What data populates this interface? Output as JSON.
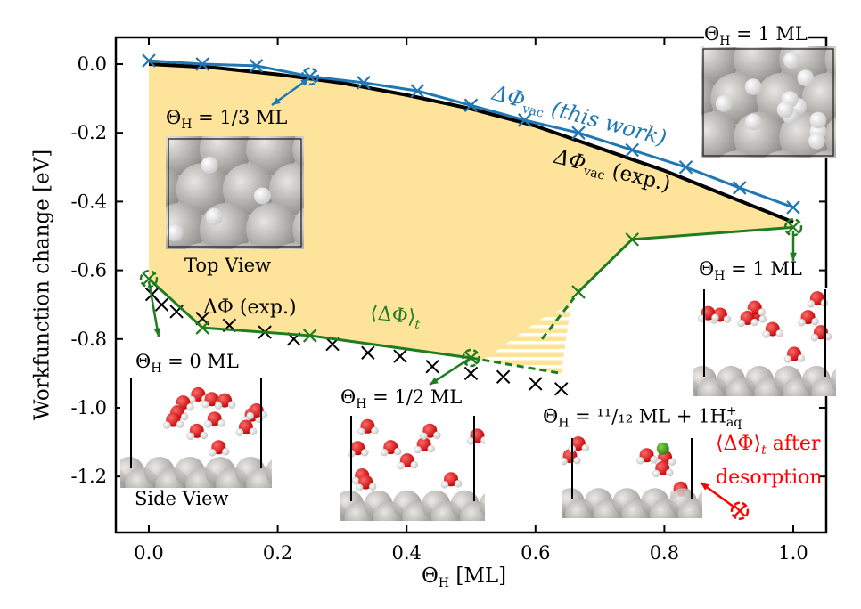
{
  "chart_data": {
    "type": "line",
    "xlabel": {
      "symbol": "Θ",
      "sub": "H",
      "rest": " [ML]"
    },
    "ylabel": "Workfunction change [eV]",
    "xlim": [
      -0.05,
      1.05
    ],
    "ylim": [
      -1.37,
      0.08
    ],
    "xticks": [
      0.0,
      0.2,
      0.4,
      0.6,
      0.8,
      1.0
    ],
    "xtick_labels": [
      "0.0",
      "0.2",
      "0.4",
      "0.6",
      "0.8",
      "1.0"
    ],
    "yticks": [
      0.0,
      -0.2,
      -0.4,
      -0.6,
      -0.8,
      -1.0,
      -1.2
    ],
    "ytick_labels": [
      "0.0",
      "-0.2",
      "-0.4",
      "-0.6",
      "-0.8",
      "-1.0",
      "-1.2"
    ],
    "grid": false,
    "colors": {
      "vac_calc": "#1f77b4",
      "vac_exp": "#000000",
      "solv": "#1e7d1e",
      "exp": "#000000",
      "desorb": "#ff0000",
      "fill": "#fde49a"
    },
    "series": [
      {
        "name": "ΔΦ_vac (this work)",
        "style": "line+x",
        "x": [
          0,
          0.0833,
          0.1667,
          0.25,
          0.3333,
          0.4167,
          0.5,
          0.5833,
          0.6667,
          0.75,
          0.8333,
          0.9167,
          1.0
        ],
        "y": [
          0.01,
          0.0,
          -0.005,
          -0.036,
          -0.054,
          -0.078,
          -0.12,
          -0.163,
          -0.2,
          -0.25,
          -0.3,
          -0.36,
          -0.417
        ],
        "circled_x": [
          0.25
        ]
      },
      {
        "name": "ΔΦ_vac (exp.)",
        "style": "line",
        "x": [
          0,
          0.1,
          0.2,
          0.3,
          0.4,
          0.5,
          0.6,
          0.7,
          0.8,
          0.9,
          1.0
        ],
        "y": [
          0,
          -0.01,
          -0.03,
          -0.055,
          -0.09,
          -0.13,
          -0.18,
          -0.245,
          -0.31,
          -0.385,
          -0.46
        ]
      },
      {
        "name": "⟨ΔΦ⟩_t",
        "style": "line+x",
        "x": [
          0,
          0.0833,
          0.25,
          0.5,
          0.6667,
          0.75,
          1.0
        ],
        "y": [
          -0.625,
          -0.767,
          -0.79,
          -0.855,
          -0.663,
          -0.51,
          -0.475
        ],
        "circled_x": [
          0,
          0.5,
          1.0
        ],
        "dashed_segments": [
          [
            [
              0.5,
              -0.855
            ],
            [
              0.64,
              -0.9
            ]
          ],
          [
            [
              0.61,
              -0.8
            ],
            [
              0.66,
              -0.68
            ]
          ]
        ]
      },
      {
        "name": "ΔΦ (exp.)",
        "style": "x",
        "x": [
          0.005,
          0.02,
          0.043,
          0.083,
          0.125,
          0.18,
          0.225,
          0.285,
          0.34,
          0.39,
          0.44,
          0.5,
          0.55,
          0.6,
          0.64
        ],
        "y": [
          -0.67,
          -0.7,
          -0.72,
          -0.74,
          -0.76,
          -0.78,
          -0.8,
          -0.815,
          -0.84,
          -0.85,
          -0.88,
          -0.9,
          -0.91,
          -0.93,
          -0.945
        ]
      },
      {
        "name": "⟨ΔΦ⟩_t after desorption",
        "style": "circled-x",
        "x": [
          0.917
        ],
        "y": [
          -1.3
        ]
      }
    ]
  },
  "labels": {
    "vac_calc": {
      "main": "ΔΦ",
      "sub": "vac",
      "rest": " (this work)"
    },
    "vac_exp": {
      "main": "ΔΦ",
      "sub": "vac",
      "rest": " (exp.)"
    },
    "exp": "ΔΦ (exp.)",
    "solv": {
      "main": "⟨ΔΦ⟩",
      "sub": "t"
    },
    "desorb_line1": {
      "main": "⟨ΔΦ⟩",
      "sub": "t",
      "rest": " after"
    },
    "desorb_line2": "desorption"
  },
  "insets": {
    "third": {
      "symbol": "Θ",
      "sub": "H",
      "rest": " = 1/3 ML",
      "caption": "Top View"
    },
    "one_top": {
      "symbol": "Θ",
      "sub": "H",
      "rest": " = 1 ML"
    },
    "one_side": {
      "symbol": "Θ",
      "sub": "H",
      "rest": " = 1 ML"
    },
    "zero": {
      "symbol": "Θ",
      "sub": "H",
      "rest": " = 0 ML",
      "caption": "Side View"
    },
    "half": {
      "symbol": "Θ",
      "sub": "H",
      "rest": " = 1/2 ML"
    },
    "eleven": {
      "symbol": "Θ",
      "sub": "H",
      "rest": " = ¹¹/₁₂ ML + 1H",
      "sup": "+",
      "sub2": "aq"
    }
  }
}
